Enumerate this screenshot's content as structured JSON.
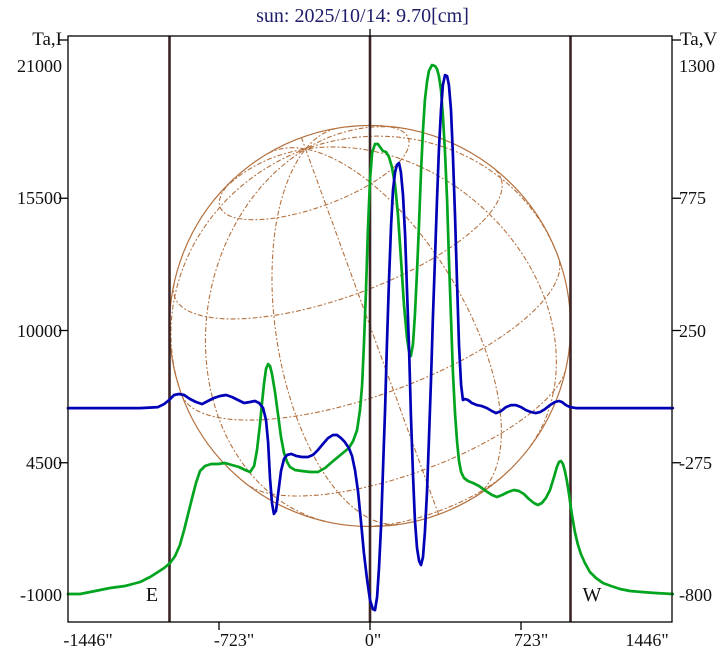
{
  "title": {
    "text": "sun: 2025/10/14: 9.70[cm]",
    "color": "#1d1d6b"
  },
  "colors": {
    "intensity_curve": "#00a41e",
    "polarization_curve": "#0000b6",
    "marker_lines": "#3d2424",
    "disk_wireframe": "#b4713f",
    "axis": "#000000"
  },
  "chart_data": {
    "type": "line",
    "title": "sun: 2025/10/14: 9.70[cm]",
    "x_axis": {
      "unit": "arcsec",
      "range": [
        -1446,
        1446
      ],
      "tick_values": [
        -1446,
        -723,
        0,
        723,
        1446
      ],
      "tick_labels": [
        "-1446\"",
        "-723\"",
        "0\"",
        "723\"",
        "1446\""
      ],
      "small_tick_values": [
        -723,
        0,
        723
      ]
    },
    "left_axis": {
      "label": "Ta,I",
      "ticks": [
        21000,
        15500,
        10000,
        4500,
        -1000
      ],
      "range": [
        -1000,
        21000
      ]
    },
    "right_axis": {
      "label": "Ta,V",
      "ticks": [
        1300,
        775,
        250,
        -275,
        -800
      ],
      "range": [
        -800,
        1300
      ]
    },
    "markers": {
      "east_label": "E",
      "west_label": "W",
      "limb_arcsec": 960,
      "center_arcsec": 0
    },
    "solar_disk": {
      "radius_arcsec": 960,
      "p_angle_deg": 20,
      "b_angle_deg": 20,
      "grid_step_deg": 30
    },
    "series": [
      {
        "name": "Ta,I",
        "axis": "left",
        "color": "#00a41e",
        "points": [
          [
            -1446,
            -958
          ],
          [
            -1388,
            -958
          ],
          [
            -1316,
            -833
          ],
          [
            -1245,
            -709
          ],
          [
            -1173,
            -626
          ],
          [
            -1101,
            -459
          ],
          [
            -1053,
            -251
          ],
          [
            -1015,
            -43
          ],
          [
            -986,
            123
          ],
          [
            -957,
            331
          ],
          [
            -933,
            622
          ],
          [
            -910,
            1080
          ],
          [
            -890,
            1703
          ],
          [
            -871,
            2369
          ],
          [
            -852,
            3034
          ],
          [
            -833,
            3658
          ],
          [
            -814,
            4157
          ],
          [
            -790,
            4365
          ],
          [
            -761,
            4448
          ],
          [
            -728,
            4448
          ],
          [
            -694,
            4490
          ],
          [
            -661,
            4407
          ],
          [
            -627,
            4324
          ],
          [
            -598,
            4199
          ],
          [
            -574,
            4116
          ],
          [
            -555,
            4365
          ],
          [
            -541,
            5031
          ],
          [
            -527,
            6070
          ],
          [
            -517,
            6985
          ],
          [
            -507,
            7817
          ],
          [
            -498,
            8399
          ],
          [
            -488,
            8607
          ],
          [
            -479,
            8524
          ],
          [
            -469,
            8191
          ],
          [
            -455,
            7443
          ],
          [
            -440,
            6486
          ],
          [
            -426,
            5571
          ],
          [
            -412,
            4906
          ],
          [
            -397,
            4532
          ],
          [
            -383,
            4324
          ],
          [
            -359,
            4199
          ],
          [
            -326,
            4157
          ],
          [
            -287,
            4116
          ],
          [
            -249,
            4116
          ],
          [
            -215,
            4282
          ],
          [
            -182,
            4532
          ],
          [
            -153,
            4740
          ],
          [
            -124,
            4948
          ],
          [
            -101,
            5114
          ],
          [
            -81,
            5405
          ],
          [
            -62,
            5862
          ],
          [
            -48,
            6694
          ],
          [
            -38,
            7734
          ],
          [
            -29,
            9398
          ],
          [
            -19,
            11685
          ],
          [
            -10,
            14181
          ],
          [
            0,
            16260
          ],
          [
            10,
            17383
          ],
          [
            24,
            17758
          ],
          [
            38,
            17758
          ],
          [
            48,
            17633
          ],
          [
            62,
            17466
          ],
          [
            77,
            17425
          ],
          [
            91,
            17217
          ],
          [
            105,
            16801
          ],
          [
            120,
            16052
          ],
          [
            134,
            14805
          ],
          [
            148,
            13016
          ],
          [
            163,
            11062
          ],
          [
            177,
            9689
          ],
          [
            187,
            9107
          ],
          [
            196,
            8940
          ],
          [
            206,
            9440
          ],
          [
            215,
            10646
          ],
          [
            225,
            12434
          ],
          [
            235,
            14514
          ],
          [
            244,
            16593
          ],
          [
            254,
            18340
          ],
          [
            263,
            19588
          ],
          [
            273,
            20336
          ],
          [
            282,
            20794
          ],
          [
            297,
            21043
          ],
          [
            311,
            21002
          ],
          [
            321,
            20877
          ],
          [
            330,
            20586
          ],
          [
            340,
            20004
          ],
          [
            349,
            18923
          ],
          [
            359,
            17425
          ],
          [
            369,
            15429
          ],
          [
            378,
            13016
          ],
          [
            388,
            10521
          ],
          [
            397,
            8274
          ],
          [
            407,
            6569
          ],
          [
            417,
            5363
          ],
          [
            426,
            4573
          ],
          [
            436,
            4116
          ],
          [
            450,
            3866
          ],
          [
            469,
            3741
          ],
          [
            493,
            3658
          ],
          [
            522,
            3533
          ],
          [
            555,
            3325
          ],
          [
            584,
            3159
          ],
          [
            608,
            3075
          ],
          [
            632,
            3159
          ],
          [
            661,
            3284
          ],
          [
            689,
            3367
          ],
          [
            713,
            3325
          ],
          [
            737,
            3200
          ],
          [
            761,
            2992
          ],
          [
            785,
            2825
          ],
          [
            804,
            2742
          ],
          [
            823,
            2825
          ],
          [
            842,
            3034
          ],
          [
            862,
            3367
          ],
          [
            881,
            3908
          ],
          [
            895,
            4324
          ],
          [
            905,
            4532
          ],
          [
            914,
            4573
          ],
          [
            924,
            4448
          ],
          [
            933,
            4157
          ],
          [
            943,
            3741
          ],
          [
            953,
            3200
          ],
          [
            962,
            2617
          ],
          [
            972,
            2077
          ],
          [
            981,
            1619
          ],
          [
            996,
            1079
          ],
          [
            1010,
            705
          ],
          [
            1029,
            330
          ],
          [
            1053,
            -44
          ],
          [
            1082,
            -293
          ],
          [
            1115,
            -501
          ],
          [
            1154,
            -626
          ],
          [
            1197,
            -751
          ],
          [
            1245,
            -834
          ],
          [
            1302,
            -875
          ],
          [
            1364,
            -917
          ],
          [
            1450,
            -958
          ]
        ]
      },
      {
        "name": "Ta,V",
        "axis": "right",
        "color": "#0000b6",
        "points": [
          [
            -1446,
            -58
          ],
          [
            -1293,
            -58
          ],
          [
            -1101,
            -58
          ],
          [
            -1015,
            -54
          ],
          [
            -986,
            -42
          ],
          [
            -962,
            -26
          ],
          [
            -938,
            -6
          ],
          [
            -914,
            -2
          ],
          [
            -890,
            -6
          ],
          [
            -862,
            -22
          ],
          [
            -833,
            -34
          ],
          [
            -804,
            -42
          ],
          [
            -776,
            -30
          ],
          [
            -747,
            -18
          ],
          [
            -718,
            -10
          ],
          [
            -689,
            -6
          ],
          [
            -661,
            -14
          ],
          [
            -632,
            -26
          ],
          [
            -603,
            -38
          ],
          [
            -574,
            -34
          ],
          [
            -551,
            -30
          ],
          [
            -531,
            -38
          ],
          [
            -512,
            -58
          ],
          [
            -498,
            -105
          ],
          [
            -488,
            -193
          ],
          [
            -479,
            -336
          ],
          [
            -469,
            -435
          ],
          [
            -460,
            -478
          ],
          [
            -450,
            -466
          ],
          [
            -440,
            -399
          ],
          [
            -426,
            -308
          ],
          [
            -412,
            -260
          ],
          [
            -397,
            -244
          ],
          [
            -378,
            -240
          ],
          [
            -354,
            -248
          ],
          [
            -326,
            -252
          ],
          [
            -297,
            -252
          ],
          [
            -273,
            -244
          ],
          [
            -249,
            -224
          ],
          [
            -225,
            -200
          ],
          [
            -201,
            -177
          ],
          [
            -177,
            -165
          ],
          [
            -158,
            -165
          ],
          [
            -139,
            -177
          ],
          [
            -120,
            -193
          ],
          [
            -101,
            -217
          ],
          [
            -86,
            -248
          ],
          [
            -72,
            -304
          ],
          [
            -57,
            -391
          ],
          [
            -43,
            -510
          ],
          [
            -29,
            -633
          ],
          [
            -14,
            -740
          ],
          [
            0,
            -820
          ],
          [
            14,
            -856
          ],
          [
            24,
            -860
          ],
          [
            34,
            -808
          ],
          [
            43,
            -693
          ],
          [
            53,
            -522
          ],
          [
            62,
            -311
          ],
          [
            72,
            -74
          ],
          [
            81,
            192
          ],
          [
            91,
            450
          ],
          [
            101,
            669
          ],
          [
            110,
            808
          ],
          [
            120,
            879
          ],
          [
            129,
            907
          ],
          [
            139,
            915
          ],
          [
            148,
            879
          ],
          [
            158,
            788
          ],
          [
            168,
            629
          ],
          [
            177,
            411
          ],
          [
            187,
            173
          ],
          [
            196,
            -85
          ],
          [
            206,
            -324
          ],
          [
            215,
            -502
          ],
          [
            225,
            -613
          ],
          [
            235,
            -665
          ],
          [
            244,
            -681
          ],
          [
            254,
            -649
          ],
          [
            263,
            -550
          ],
          [
            273,
            -391
          ],
          [
            282,
            -185
          ],
          [
            292,
            54
          ],
          [
            301,
            300
          ],
          [
            311,
            538
          ],
          [
            321,
            768
          ],
          [
            330,
            967
          ],
          [
            340,
            1125
          ],
          [
            349,
            1225
          ],
          [
            359,
            1264
          ],
          [
            369,
            1260
          ],
          [
            378,
            1225
          ],
          [
            388,
            1125
          ],
          [
            397,
            947
          ],
          [
            407,
            709
          ],
          [
            417,
            431
          ],
          [
            426,
            192
          ],
          [
            436,
            34
          ],
          [
            445,
            -26
          ],
          [
            455,
            -22
          ],
          [
            469,
            -26
          ],
          [
            488,
            -38
          ],
          [
            512,
            -46
          ],
          [
            536,
            -50
          ],
          [
            560,
            -58
          ],
          [
            584,
            -70
          ],
          [
            603,
            -78
          ],
          [
            627,
            -70
          ],
          [
            651,
            -54
          ],
          [
            675,
            -46
          ],
          [
            699,
            -46
          ],
          [
            723,
            -54
          ],
          [
            747,
            -66
          ],
          [
            771,
            -74
          ],
          [
            794,
            -78
          ],
          [
            814,
            -74
          ],
          [
            838,
            -62
          ],
          [
            862,
            -46
          ],
          [
            886,
            -34
          ],
          [
            905,
            -30
          ],
          [
            919,
            -34
          ],
          [
            938,
            -46
          ],
          [
            957,
            -54
          ],
          [
            986,
            -58
          ],
          [
            1101,
            -58
          ],
          [
            1292,
            -58
          ],
          [
            1450,
            -58
          ]
        ]
      }
    ]
  }
}
